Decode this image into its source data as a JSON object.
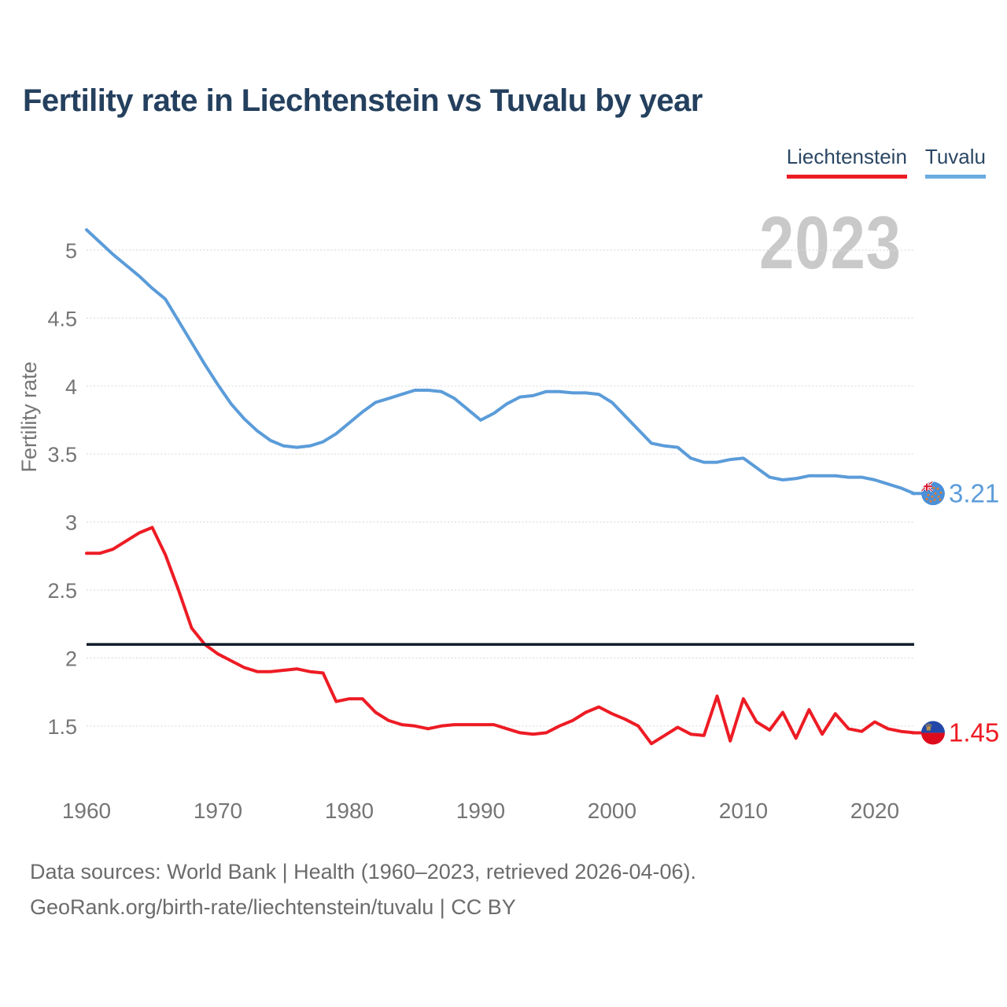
{
  "header": {
    "title": "Fertility rate in Liechtenstein vs Tuvalu by year"
  },
  "legend": {
    "items": [
      {
        "label": "Liechtenstein",
        "color": "#ed1c24"
      },
      {
        "label": "Tuvalu",
        "color": "#6aabe0"
      }
    ]
  },
  "watermark": {
    "year": "2023"
  },
  "footer": {
    "line1": "Data sources: World Bank | Health (1960–2023, retrieved 2026-04-06).",
    "line2": "GeoRank.org/birth-rate/liechtenstein/tuvalu | CC BY"
  },
  "chart_data": {
    "type": "line",
    "title": "Fertility rate in Liechtenstein vs Tuvalu by year",
    "xlabel": "",
    "ylabel": "Fertility rate",
    "x_start": 1960,
    "x_end": 2023,
    "x_step": 1,
    "x_ticks": [
      1960,
      1970,
      1980,
      1990,
      2000,
      2010,
      2020
    ],
    "y_ticks": [
      1.5,
      2,
      2.5,
      3,
      3.5,
      4,
      4.5,
      5
    ],
    "ylim": [
      1.25,
      5.25
    ],
    "grid": true,
    "legend_position": "top-right",
    "watermark": "2023",
    "reference_line": {
      "value": 2.1,
      "color": "#101b29"
    },
    "tick_color": "#757575",
    "grid_color": "#dcdcdc",
    "series": [
      {
        "name": "Liechtenstein",
        "color": "#ed1c24",
        "end_label": "1.45",
        "end_year": 2023,
        "flag": "liechtenstein",
        "values": [
          2.77,
          2.77,
          2.8,
          2.86,
          2.92,
          2.96,
          2.76,
          2.5,
          2.22,
          2.1,
          2.03,
          1.98,
          1.93,
          1.9,
          1.9,
          1.91,
          1.92,
          1.9,
          1.89,
          1.68,
          1.7,
          1.7,
          1.6,
          1.54,
          1.51,
          1.5,
          1.48,
          1.5,
          1.51,
          1.51,
          1.51,
          1.51,
          1.48,
          1.45,
          1.44,
          1.45,
          1.5,
          1.54,
          1.6,
          1.64,
          1.59,
          1.55,
          1.5,
          1.37,
          1.43,
          1.49,
          1.44,
          1.43,
          1.72,
          1.39,
          1.7,
          1.53,
          1.47,
          1.6,
          1.41,
          1.62,
          1.44,
          1.59,
          1.48,
          1.46,
          1.53,
          1.48,
          1.46,
          1.45
        ]
      },
      {
        "name": "Tuvalu",
        "color": "#5b9cd9",
        "end_label": "3.21",
        "end_year": 2023,
        "flag": "tuvalu",
        "values": [
          5.15,
          5.06,
          4.97,
          4.89,
          4.81,
          4.72,
          4.64,
          4.48,
          4.32,
          4.16,
          4.01,
          3.87,
          3.76,
          3.67,
          3.6,
          3.56,
          3.55,
          3.56,
          3.59,
          3.65,
          3.73,
          3.81,
          3.88,
          3.91,
          3.94,
          3.97,
          3.97,
          3.96,
          3.91,
          3.83,
          3.75,
          3.8,
          3.87,
          3.92,
          3.93,
          3.96,
          3.96,
          3.95,
          3.95,
          3.94,
          3.88,
          3.78,
          3.68,
          3.58,
          3.56,
          3.55,
          3.47,
          3.44,
          3.44,
          3.46,
          3.47,
          3.4,
          3.33,
          3.31,
          3.32,
          3.34,
          3.34,
          3.34,
          3.33,
          3.33,
          3.31,
          3.28,
          3.25,
          3.21
        ]
      }
    ]
  }
}
